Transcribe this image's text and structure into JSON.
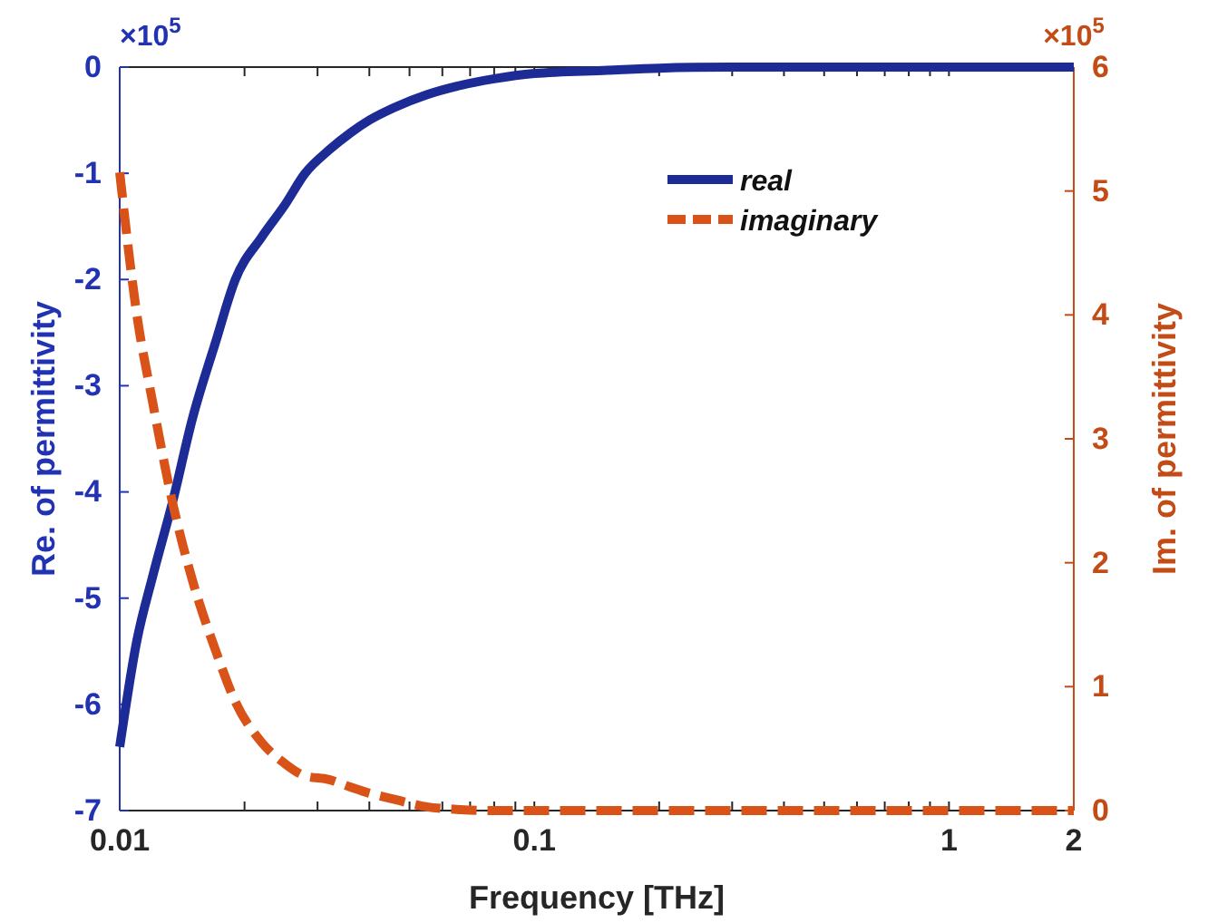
{
  "chart_data": {
    "type": "line",
    "xlabel": "Frequency [THz]",
    "ylabel": "Re. of permittivity",
    "y2label": "Im. of permittivity",
    "x": [
      0.01,
      0.011,
      0.012,
      0.0134,
      0.015,
      0.017,
      0.019,
      0.022,
      0.025,
      0.028,
      0.032,
      0.036,
      0.04,
      0.046,
      0.055,
      0.065,
      0.08,
      0.1,
      0.15,
      0.2,
      0.3,
      0.5,
      1,
      2
    ],
    "series": [
      {
        "name": "real",
        "color": "#1c2b95",
        "line_style": "solid",
        "values": [
          -6.4,
          -5.4,
          -4.8,
          -4.1,
          -3.3,
          -2.6,
          -2.0,
          -1.6,
          -1.3,
          -1.0,
          -0.78,
          -0.62,
          -0.5,
          -0.38,
          -0.26,
          -0.18,
          -0.11,
          -0.06,
          -0.03,
          -0.01,
          0,
          0,
          0,
          0
        ]
      },
      {
        "name": "imaginary",
        "color": "#d95319",
        "line_style": "dashed",
        "axis": "y2",
        "values": [
          5.15,
          4.0,
          3.3,
          2.49,
          1.85,
          1.3,
          0.88,
          0.55,
          0.38,
          0.28,
          0.25,
          0.19,
          0.14,
          0.09,
          0.03,
          0.01,
          0,
          0,
          0,
          0,
          0,
          0,
          0,
          0
        ]
      }
    ],
    "log": "x",
    "xlim": [
      0.01,
      2
    ],
    "xticks": [
      0.01,
      {
        "value": 0.02,
        "label": null
      },
      {
        "value": 0.03,
        "label": null
      },
      {
        "value": 0.04,
        "label": null
      },
      {
        "value": 0.05,
        "label": null
      },
      {
        "value": 0.06,
        "label": null
      },
      {
        "value": 0.07,
        "label": null
      },
      {
        "value": 0.08,
        "label": null
      },
      {
        "value": 0.09,
        "label": null
      },
      0.1,
      {
        "value": 0.2,
        "label": null
      },
      {
        "value": 0.3,
        "label": null
      },
      {
        "value": 0.4,
        "label": null
      },
      {
        "value": 0.5,
        "label": null
      },
      {
        "value": 0.6,
        "label": null
      },
      {
        "value": 0.7,
        "label": null
      },
      {
        "value": 0.8,
        "label": null
      },
      {
        "value": 0.9,
        "label": null
      },
      1,
      2
    ],
    "ylim": [
      -7,
      0
    ],
    "yticks": [
      -7,
      -6,
      -5,
      -4,
      -3,
      -2,
      -1,
      0
    ],
    "y2lim": [
      0,
      6
    ],
    "y2ticks": [
      0,
      1,
      2,
      3,
      4,
      5,
      6
    ],
    "annotations": [
      "×10$^{5}$",
      "×10$^{5}$"
    ],
    "legend": "top right",
    "grid": false,
    "marker": "none"
  }
}
